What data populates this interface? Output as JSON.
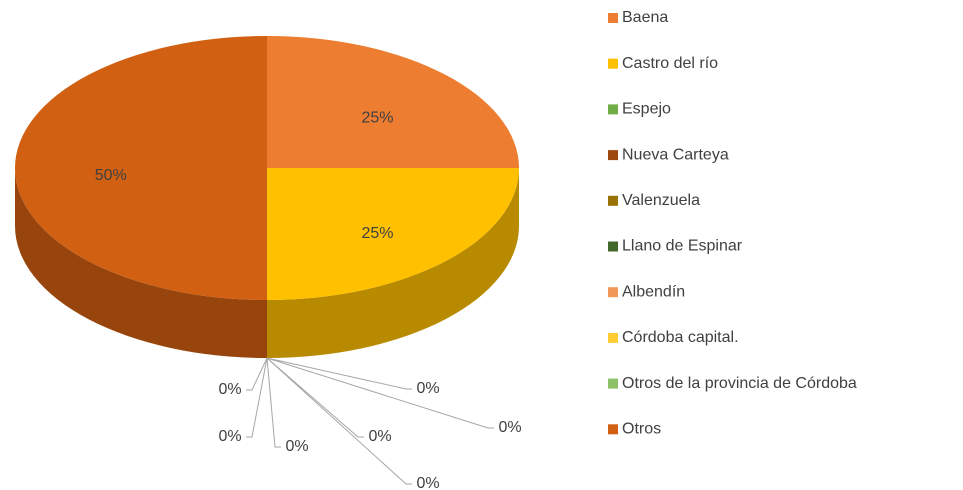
{
  "chart_data": {
    "type": "pie",
    "categories": [
      "Baena",
      "Castro del río",
      "Espejo",
      "Nueva Carteya",
      "Valenzuela",
      "Llano de Espinar",
      "Albendín",
      "Córdoba capital.",
      "Otros de la provincia de Córdoba",
      "Otros"
    ],
    "values": [
      25,
      25,
      0,
      0,
      0,
      0,
      0,
      0,
      0,
      50
    ],
    "value_labels": [
      "25%",
      "25%",
      "0%",
      "0%",
      "0%",
      "0%",
      "0%",
      "0%",
      "0%",
      "50%"
    ],
    "colors": [
      "#ed7d31",
      "#ffc000",
      "#70ad47",
      "#9e480e",
      "#997300",
      "#43682b",
      "#f1975a",
      "#ffcd33",
      "#8cc168",
      "#d26012"
    ],
    "legend": "right"
  }
}
